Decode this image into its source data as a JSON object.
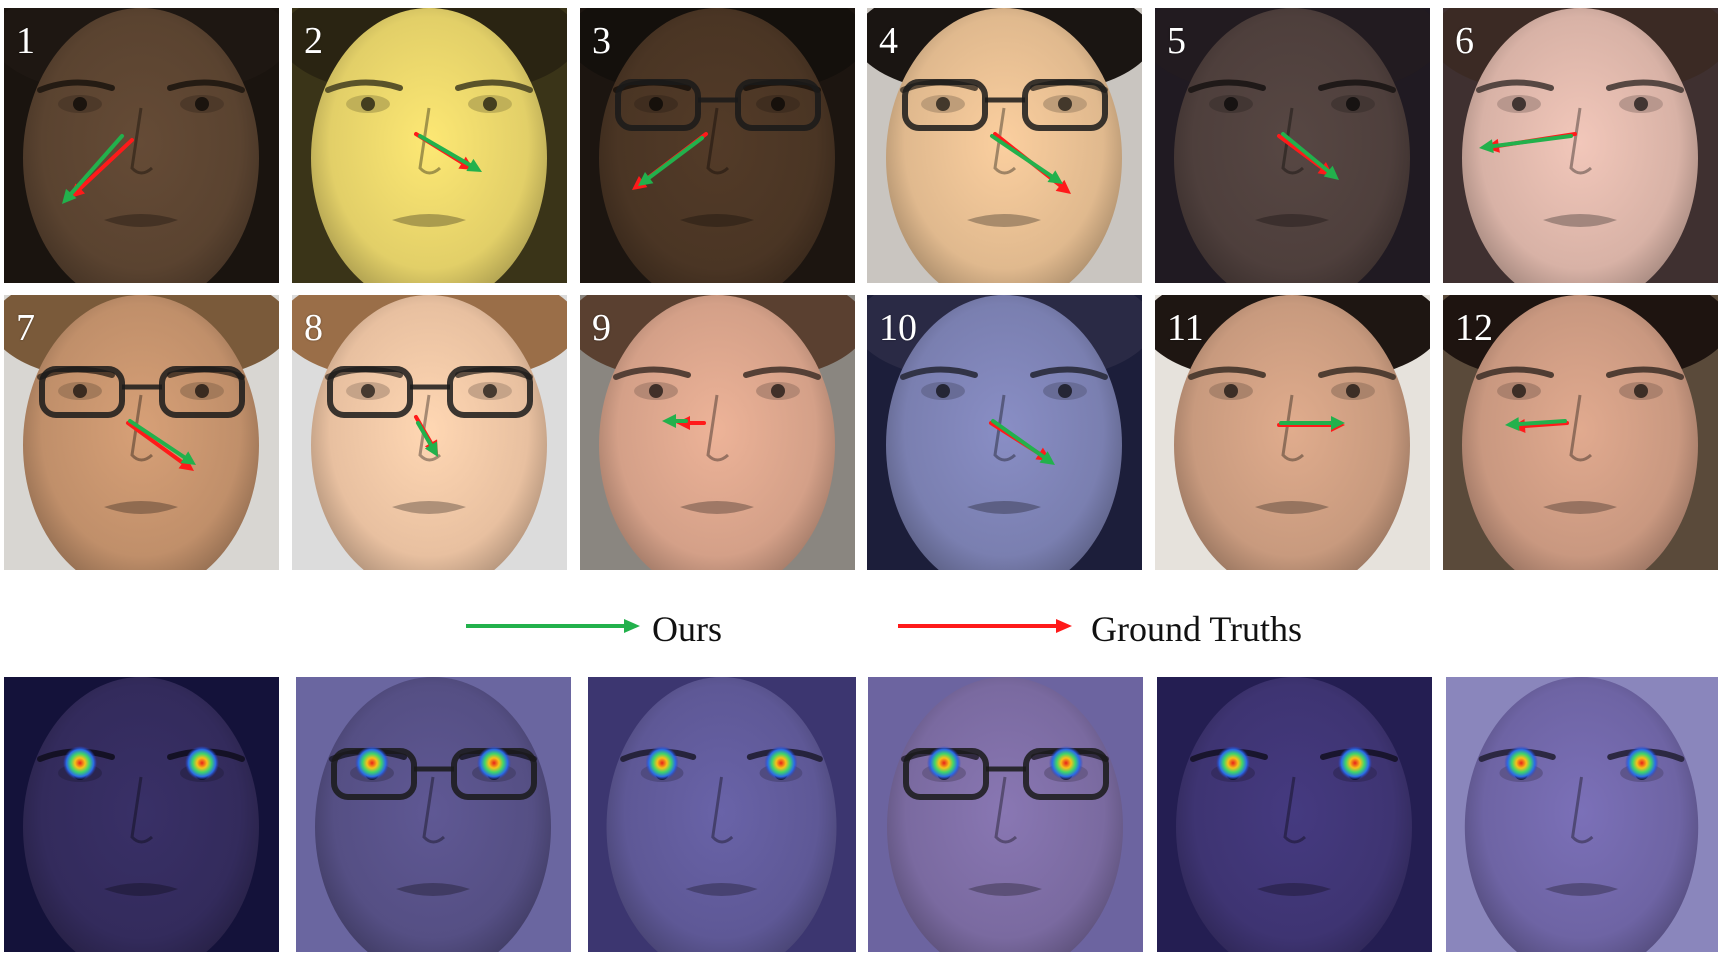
{
  "colors": {
    "ours_arrow": "#22b14c",
    "ground_truth_arrow": "#ff1a1a"
  },
  "legend": {
    "ours_label": "Ours",
    "ground_truth_label": "Ground Truths"
  },
  "gaze_samples": [
    {
      "label": "1",
      "skin": "#5a4330",
      "bg": "#1a140f",
      "hair": "#1e1712",
      "glasses": false
    },
    {
      "label": "2",
      "skin": "#e2cf68",
      "bg": "#3a3418",
      "hair": "#2a2412",
      "glasses": false
    },
    {
      "label": "3",
      "skin": "#4a3524",
      "bg": "#1c1510",
      "hair": "#14100c",
      "glasses": true
    },
    {
      "label": "4",
      "skin": "#e0b98e",
      "bg": "#c9c5c0",
      "hair": "#1a1512",
      "glasses": true
    },
    {
      "label": "5",
      "skin": "#4e3f3c",
      "bg": "#201a22",
      "hair": "#221b20",
      "glasses": false
    },
    {
      "label": "6",
      "skin": "#d8b2a6",
      "bg": "#3f3030",
      "hair": "#3b2a24",
      "glasses": false
    },
    {
      "label": "7",
      "skin": "#c08f6a",
      "bg": "#d8d6d2",
      "hair": "#7a5a3a",
      "glasses": true
    },
    {
      "label": "8",
      "skin": "#e8c0a0",
      "bg": "#dcdcdc",
      "hair": "#9a6e48",
      "glasses": true
    },
    {
      "label": "9",
      "skin": "#d4a088",
      "bg": "#8a8680",
      "hair": "#5a4030",
      "glasses": false
    },
    {
      "label": "10",
      "skin": "#7a7fb0",
      "bg": "#1c1e3a",
      "hair": "#2a2a45",
      "glasses": false
    },
    {
      "label": "11",
      "skin": "#c89a7e",
      "bg": "#e6e2dc",
      "hair": "#1e1612",
      "glasses": false
    },
    {
      "label": "12",
      "skin": "#c99880",
      "bg": "#5a4a3a",
      "hair": "#1e1410",
      "glasses": false
    }
  ],
  "heatmap_samples": [
    {
      "skin": "#332b5c",
      "bg": "#14123a",
      "glasses": false
    },
    {
      "skin": "#554f84",
      "bg": "#6a66a0",
      "glasses": true
    },
    {
      "skin": "#5e5896",
      "bg": "#3c3670",
      "glasses": false
    },
    {
      "skin": "#7a6aa0",
      "bg": "#6c64a0",
      "glasses": true
    },
    {
      "skin": "#3e3472",
      "bg": "#241e52",
      "glasses": false
    },
    {
      "skin": "#6e64a4",
      "bg": "#8a86bc",
      "glasses": false
    }
  ]
}
